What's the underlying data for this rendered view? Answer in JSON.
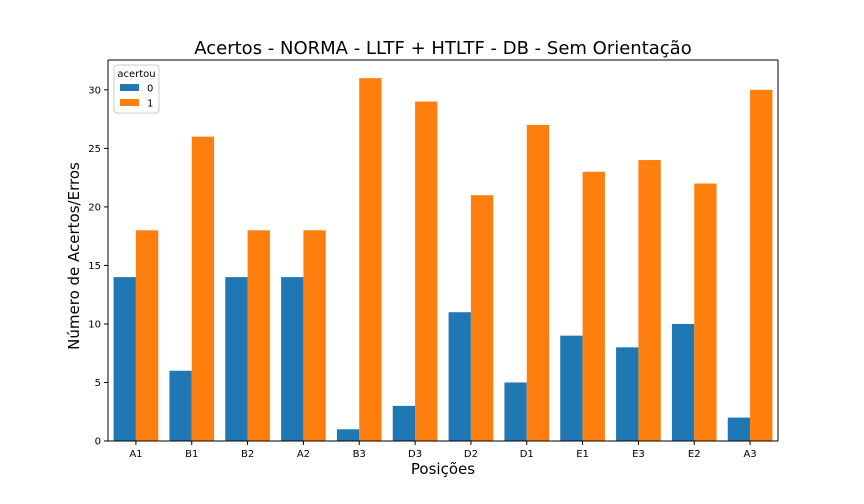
{
  "chart_data": {
    "type": "bar",
    "title": "Acertos - NORMA - LLTF + HTLTF - DB - Sem Orientação",
    "xlabel": "Posições",
    "ylabel": "Número de Acertos/Erros",
    "categories": [
      "A1",
      "B1",
      "B2",
      "A2",
      "B3",
      "D3",
      "D2",
      "D1",
      "E1",
      "E3",
      "E2",
      "A3"
    ],
    "series": [
      {
        "name": "0",
        "color": "#1f77b4",
        "values": [
          14,
          6,
          14,
          14,
          1,
          3,
          11,
          5,
          9,
          8,
          10,
          2
        ]
      },
      {
        "name": "1",
        "color": "#ff7f0e",
        "values": [
          18,
          26,
          18,
          18,
          31,
          29,
          21,
          27,
          23,
          24,
          22,
          30
        ]
      }
    ],
    "ylim": [
      0,
      32.55
    ],
    "yticks": [
      0,
      5,
      10,
      15,
      20,
      25,
      30
    ],
    "legend": {
      "title": "acertou",
      "placement": "top-left"
    },
    "grid": false
  }
}
